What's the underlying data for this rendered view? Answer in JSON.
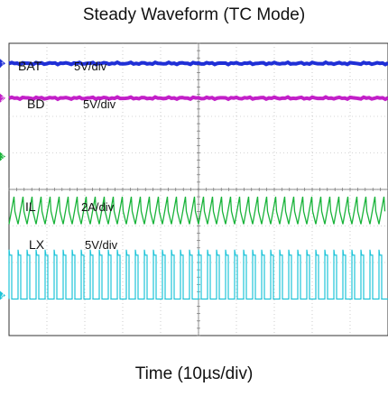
{
  "chart_data": {
    "type": "line",
    "title": "Steady Waveform (TC Mode)",
    "xlabel": "Time (10µs/div)",
    "ylabel": "",
    "x_divisions": 10,
    "y_divisions": 8,
    "grid": true,
    "series": [
      {
        "name": "BAT",
        "scale": "5V/div",
        "color": "#1f2fd6",
        "shape": "flat",
        "level_div": 7.45,
        "ripple_div": 0.03
      },
      {
        "name": "BD",
        "scale": "5V/div",
        "color": "#c21fc8",
        "shape": "flat",
        "level_div": 6.5,
        "ripple_div": 0.03
      },
      {
        "name": "IL",
        "scale": "2A/div",
        "color": "#19b33a",
        "shape": "triangle",
        "low_div": 3.05,
        "high_div": 3.8,
        "cycles": 42
      },
      {
        "name": "LX",
        "scale": "5V/div",
        "color": "#1fc4d8",
        "shape": "square",
        "low_div": 1.0,
        "high_div": 2.2,
        "cycles": 42
      }
    ]
  },
  "trace_markers": [
    "1",
    "2",
    "3",
    "4"
  ]
}
